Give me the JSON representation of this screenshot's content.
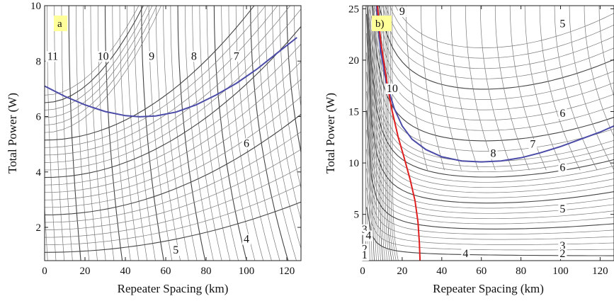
{
  "chart_data": [
    {
      "type": "line",
      "panel_label": "a",
      "xlabel": "Repeater Spacing (km)",
      "ylabel": "Total Power (W)",
      "xlim": [
        0,
        127
      ],
      "ylim": [
        0.8,
        10
      ],
      "xticks": [
        0,
        20,
        40,
        60,
        80,
        100,
        120
      ],
      "yticks": [
        2,
        4,
        6,
        8,
        10
      ],
      "contour_labels": [
        {
          "text": "11",
          "x": 4,
          "y": 8.05
        },
        {
          "text": "10",
          "x": 29,
          "y": 8.05
        },
        {
          "text": "9",
          "x": 53,
          "y": 8.05
        },
        {
          "text": "8",
          "x": 74,
          "y": 8.05
        },
        {
          "text": "7",
          "x": 95,
          "y": 8.05
        },
        {
          "text": "6",
          "x": 100,
          "y": 4.9
        },
        {
          "text": "5",
          "x": 65,
          "y": 1.05
        },
        {
          "text": "4",
          "x": 100,
          "y": 1.45
        }
      ],
      "series": [
        {
          "color": "#4b4ba8",
          "x": [
            0,
            10,
            20,
            30,
            40,
            47,
            55,
            65,
            75,
            85,
            95,
            105,
            115,
            125
          ],
          "y": [
            7.1,
            6.73,
            6.42,
            6.18,
            6.03,
            5.99,
            6.02,
            6.16,
            6.42,
            6.78,
            7.2,
            7.7,
            8.28,
            8.85
          ]
        }
      ],
      "contour_color": "#7a7a7a",
      "accent_color": "#ffff99"
    },
    {
      "type": "line",
      "panel_label": "b)",
      "xlabel": "Repeater Spacing (km)",
      "ylabel": "Total Power (W)",
      "xlim": [
        0,
        127
      ],
      "ylim": [
        0.5,
        25.3
      ],
      "xticks": [
        0,
        20,
        40,
        60,
        80,
        100,
        120
      ],
      "yticks": [
        5,
        10,
        15,
        20,
        25
      ],
      "contour_labels": [
        {
          "text": "9",
          "x": 20,
          "y": 24.4
        },
        {
          "text": "10",
          "x": 15,
          "y": 16.9
        },
        {
          "text": "5",
          "x": 101,
          "y": 23.2
        },
        {
          "text": "6",
          "x": 101,
          "y": 14.5
        },
        {
          "text": "7",
          "x": 86,
          "y": 11.5
        },
        {
          "text": "8",
          "x": 66,
          "y": 10.6
        },
        {
          "text": "6",
          "x": 101,
          "y": 9.2
        },
        {
          "text": "5",
          "x": 101,
          "y": 5.2
        },
        {
          "text": "4",
          "x": 52,
          "y": 0.85
        },
        {
          "text": "3",
          "x": 101,
          "y": 1.6
        },
        {
          "text": "2",
          "x": 101,
          "y": 0.85
        },
        {
          "text": "3",
          "x": 1,
          "y": 3.2
        },
        {
          "text": "4",
          "x": 3,
          "y": 2.6
        },
        {
          "text": "2",
          "x": 1,
          "y": 1.3
        },
        {
          "text": "1",
          "x": 1,
          "y": 0.7
        }
      ],
      "series": [
        {
          "color": "#4b4ba8",
          "x": [
            7,
            9,
            12,
            16,
            20,
            25,
            32,
            40,
            50,
            60,
            70,
            80,
            90,
            100,
            110,
            120,
            127
          ],
          "y": [
            25.3,
            21,
            17.8,
            15.3,
            13.6,
            12.3,
            11.3,
            10.6,
            10.2,
            10.1,
            10.2,
            10.5,
            11,
            11.6,
            12.3,
            13,
            13.6
          ]
        },
        {
          "color": "#e02020",
          "x": [
            7.5,
            9,
            11,
            13,
            15,
            18,
            21,
            24,
            26.5,
            28,
            28.7,
            29
          ],
          "y": [
            25.3,
            22,
            19.5,
            17,
            15,
            12.5,
            10.5,
            8.4,
            6.3,
            4.2,
            2.2,
            0.5
          ]
        }
      ],
      "contour_color": "#7a7a7a",
      "accent_color": "#ffff99"
    }
  ]
}
